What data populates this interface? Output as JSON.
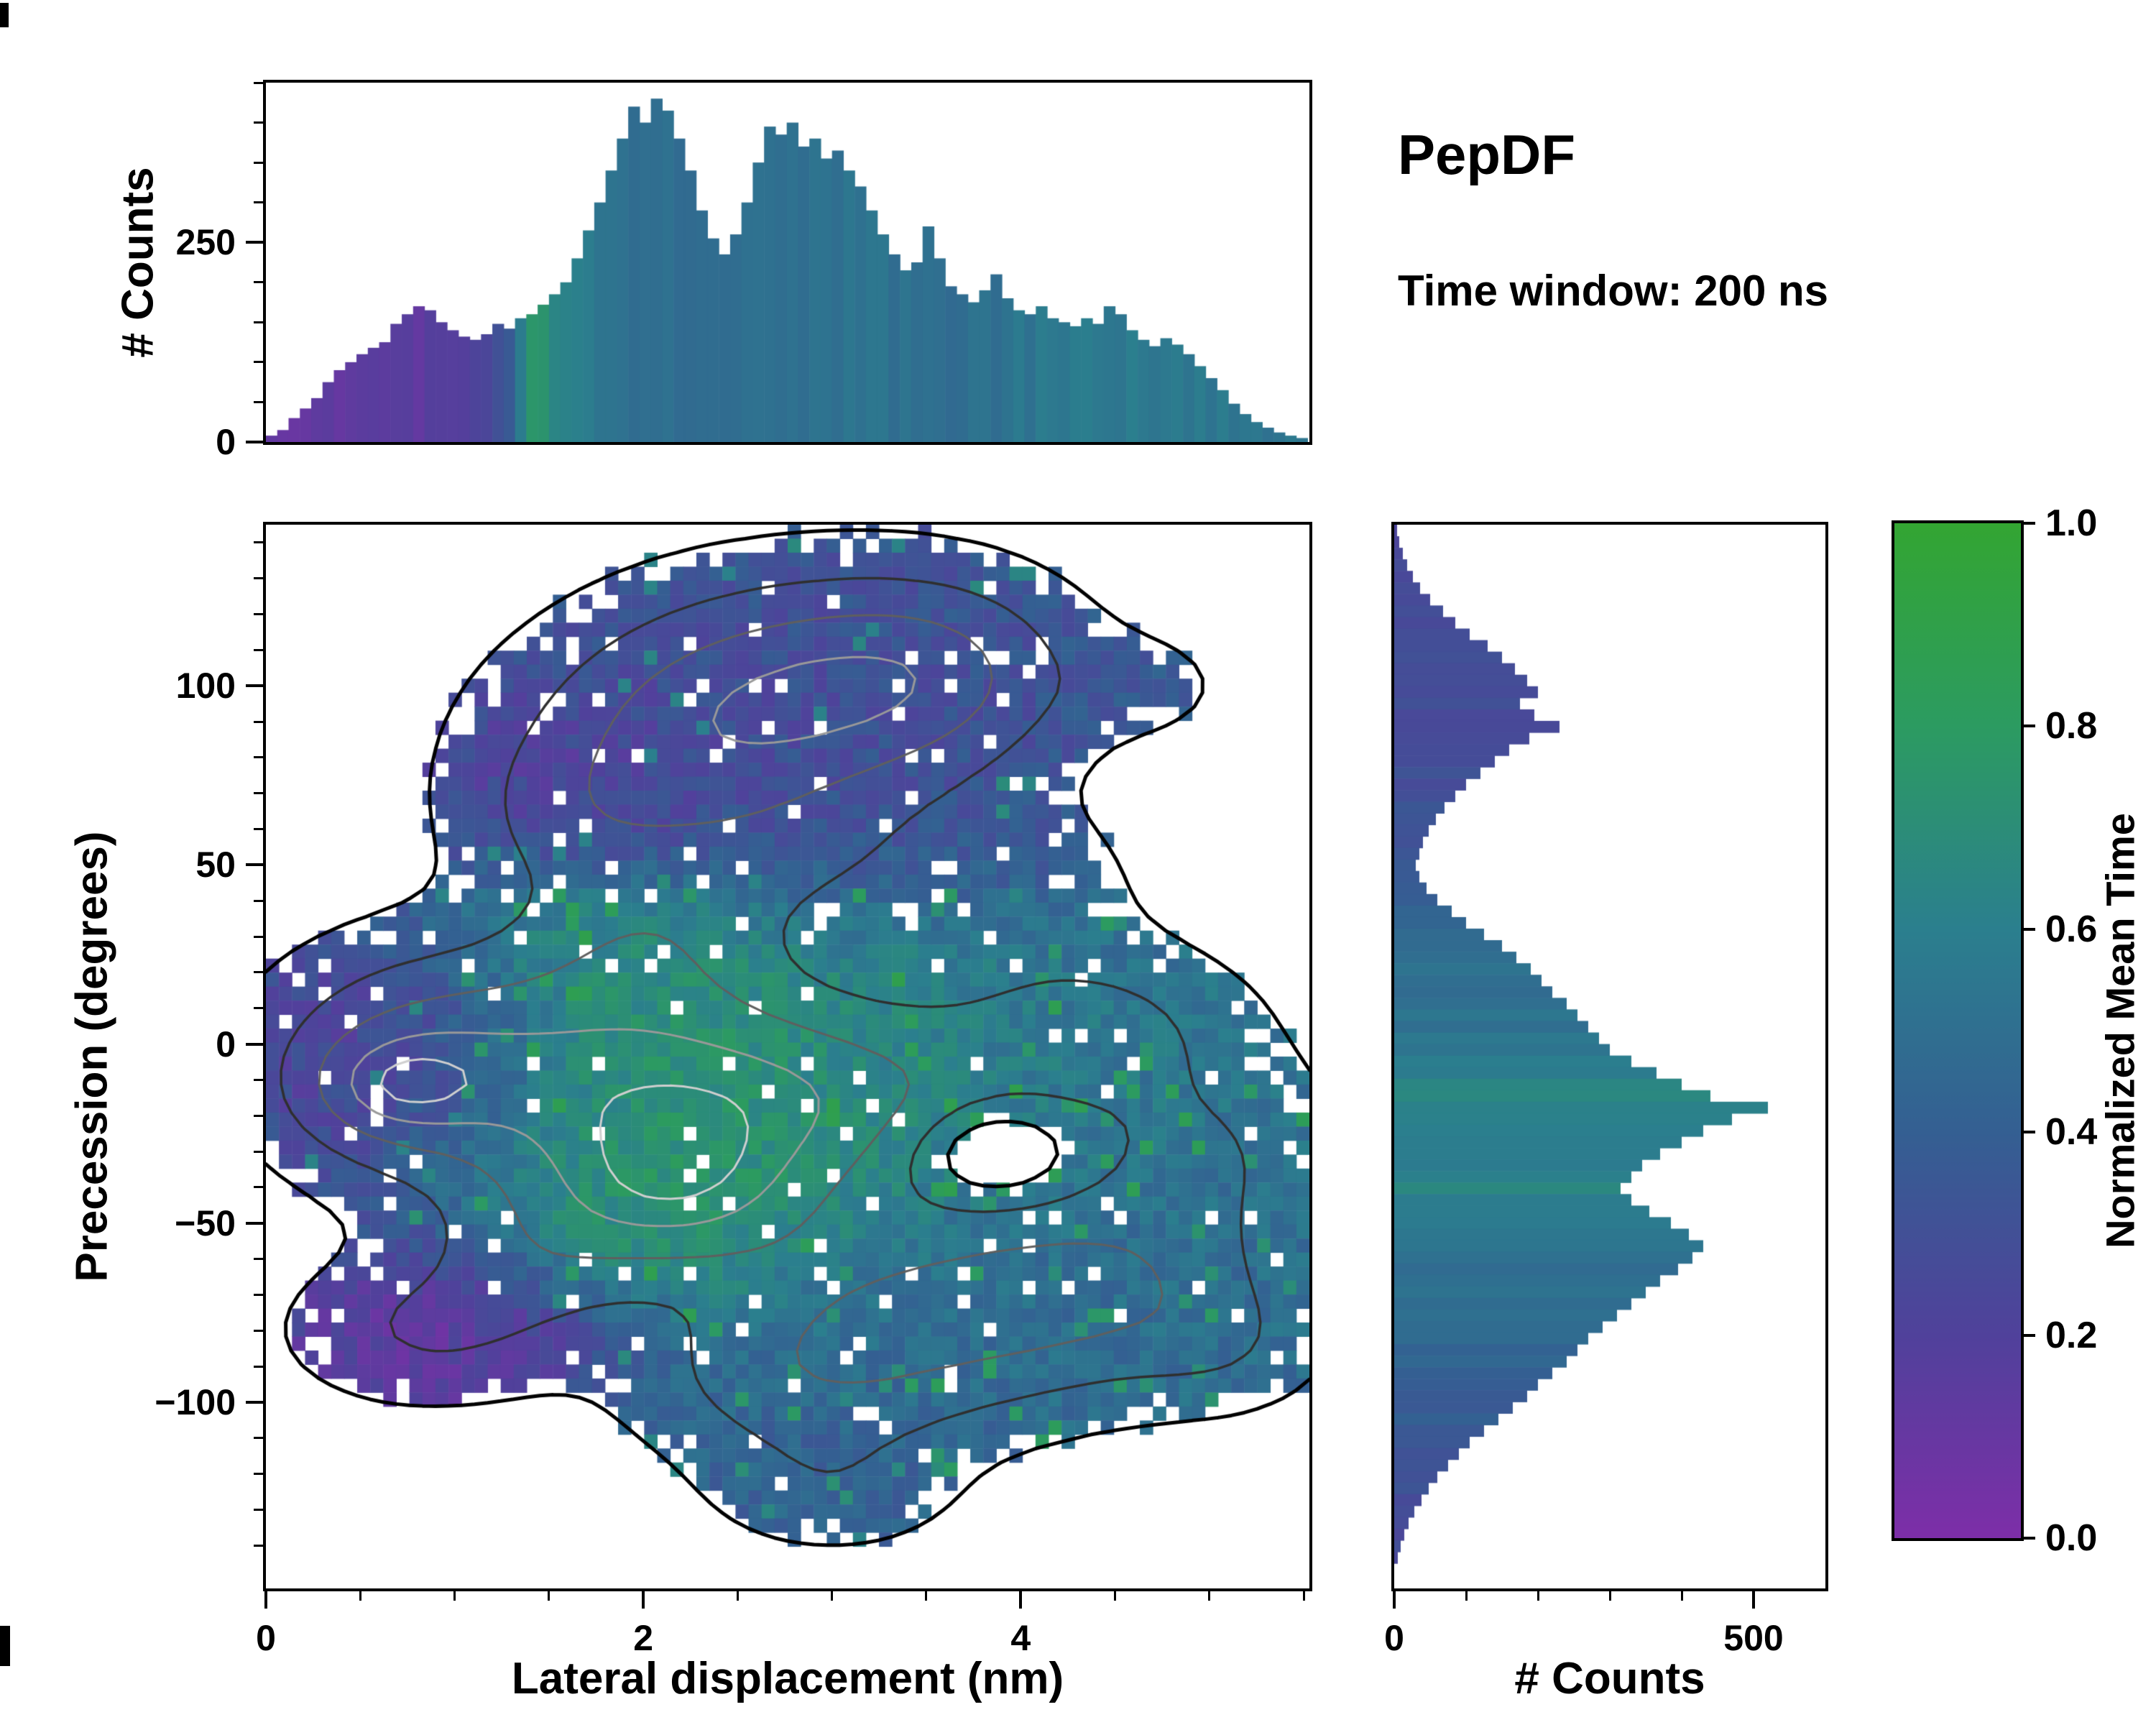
{
  "header": {
    "title": "PepDF",
    "subtitle": "Time window: 200 ns"
  },
  "chart_data": [
    {
      "id": "top_histogram",
      "type": "bar",
      "ylabel": "# Counts",
      "x_range": [
        0,
        5.53
      ],
      "y_range": [
        0,
        450
      ],
      "yticks": [
        0,
        250
      ],
      "yminor_step": 50,
      "bin_start": 0,
      "bin_width": 0.06,
      "values": [
        8,
        15,
        30,
        42,
        55,
        75,
        90,
        100,
        110,
        118,
        125,
        148,
        160,
        170,
        165,
        150,
        140,
        132,
        128,
        135,
        148,
        142,
        155,
        160,
        172,
        185,
        200,
        230,
        265,
        300,
        340,
        380,
        420,
        400,
        430,
        415,
        380,
        340,
        290,
        255,
        235,
        260,
        300,
        350,
        395,
        385,
        400,
        370,
        380,
        355,
        365,
        340,
        320,
        290,
        260,
        235,
        215,
        225,
        270,
        230,
        195,
        185,
        175,
        190,
        210,
        180,
        165,
        160,
        170,
        155,
        150,
        145,
        155,
        148,
        170,
        160,
        140,
        128,
        120,
        130,
        122,
        110,
        95,
        80,
        65,
        48,
        35,
        25,
        18,
        12,
        8,
        5
      ],
      "color_keyframes": [
        [
          0,
          0.1
        ],
        [
          0.55,
          0.13
        ],
        [
          0.95,
          0.16
        ],
        [
          1.18,
          0.22
        ],
        [
          1.3,
          0.4
        ],
        [
          1.42,
          0.78
        ],
        [
          1.56,
          0.62
        ],
        [
          1.8,
          0.52
        ],
        [
          2.1,
          0.48
        ],
        [
          2.5,
          0.52
        ],
        [
          2.9,
          0.5
        ],
        [
          3.3,
          0.52
        ],
        [
          3.7,
          0.5
        ],
        [
          4.1,
          0.55
        ],
        [
          4.6,
          0.57
        ],
        [
          5.1,
          0.55
        ],
        [
          5.53,
          0.52
        ]
      ]
    },
    {
      "id": "main_heatmap",
      "type": "heatmap",
      "xlabel": "Lateral displacement (nm)",
      "ylabel": "Precession (degrees)",
      "value_label": "Normalized Mean Time",
      "x_range": [
        0,
        5.53
      ],
      "y_range": [
        -152,
        145
      ],
      "xticks": [
        0,
        2,
        4
      ],
      "xminor_step": 0.5,
      "yticks": [
        100,
        50,
        0,
        -50,
        -100
      ],
      "yminor_step": 10,
      "grid_nx": 80,
      "grid_ny": 76,
      "density_threshold": 0.14,
      "contour_levels": [
        0.15,
        0.45,
        0.8,
        1.15,
        1.4
      ],
      "contour_colors": [
        "#000000",
        "#2f2f2f",
        "#5f5f5f",
        "#999999",
        "#cfcfcf"
      ],
      "contour_widths": [
        5,
        3.5,
        3,
        3,
        3
      ],
      "density_blobs": [
        {
          "x": 2.9,
          "y": 100,
          "sx": 0.75,
          "sy": 22,
          "w": 0.85
        },
        {
          "x": 2.2,
          "y": 80,
          "sx": 0.7,
          "sy": 22,
          "w": 0.6
        },
        {
          "x": 1.6,
          "y": 62,
          "sx": 0.4,
          "sy": 15,
          "w": 0.3
        },
        {
          "x": 3.6,
          "y": 105,
          "sx": 0.5,
          "sy": 18,
          "w": 0.45
        },
        {
          "x": 2.0,
          "y": 28,
          "sx": 0.5,
          "sy": 16,
          "w": 0.5
        },
        {
          "x": 2.7,
          "y": 50,
          "sx": 0.5,
          "sy": 14,
          "w": 0.25
        },
        {
          "x": 3.9,
          "y": 45,
          "sx": 0.5,
          "sy": 16,
          "w": 0.3
        },
        {
          "x": 4.7,
          "y": 100,
          "sx": 0.3,
          "sy": 10,
          "w": 0.18
        },
        {
          "x": 1.9,
          "y": -10,
          "sx": 0.85,
          "sy": 22,
          "w": 1.0
        },
        {
          "x": 0.8,
          "y": -5,
          "sx": 0.55,
          "sy": 22,
          "w": 0.65
        },
        {
          "x": 2.15,
          "y": -42,
          "sx": 0.55,
          "sy": 16,
          "w": 0.95
        },
        {
          "x": 0.65,
          "y": -12,
          "sx": 0.3,
          "sy": 10,
          "w": 0.5
        },
        {
          "x": 3.1,
          "y": -15,
          "sx": 0.7,
          "sy": 18,
          "w": 0.6
        },
        {
          "x": 4.4,
          "y": 5,
          "sx": 0.55,
          "sy": 16,
          "w": 0.5
        },
        {
          "x": 5.0,
          "y": -30,
          "sx": 0.5,
          "sy": 18,
          "w": 0.4
        },
        {
          "x": 3.6,
          "y": -75,
          "sx": 0.8,
          "sy": 20,
          "w": 0.75
        },
        {
          "x": 4.5,
          "y": -65,
          "sx": 0.6,
          "sy": 18,
          "w": 0.5
        },
        {
          "x": 2.8,
          "y": -95,
          "sx": 0.6,
          "sy": 16,
          "w": 0.45
        },
        {
          "x": 0.85,
          "y": -80,
          "sx": 0.5,
          "sy": 14,
          "w": 0.45
        },
        {
          "x": 1.4,
          "y": -60,
          "sx": 0.4,
          "sy": 14,
          "w": 0.35
        },
        {
          "x": 3.0,
          "y": -125,
          "sx": 0.45,
          "sy": 12,
          "w": 0.3
        },
        {
          "x": 5.1,
          "y": -85,
          "sx": 0.35,
          "sy": 12,
          "w": 0.25
        },
        {
          "x": 3.85,
          "y": -30,
          "sx": 0.28,
          "sy": 9,
          "w": -0.55
        }
      ],
      "meantime_base": {
        "t": 0.5,
        "w": 0.2
      },
      "meantime_blobs": [
        {
          "x": 2.8,
          "y": 95,
          "sx": 1.1,
          "sy": 32,
          "t": 0.27,
          "w": 1.3
        },
        {
          "x": 1.6,
          "y": 75,
          "sx": 0.55,
          "sy": 18,
          "t": 0.14,
          "w": 0.9
        },
        {
          "x": 0.7,
          "y": -5,
          "sx": 0.55,
          "sy": 24,
          "t": 0.1,
          "w": 1.1
        },
        {
          "x": 0.85,
          "y": -82,
          "sx": 0.55,
          "sy": 16,
          "t": 0.07,
          "w": 1.3
        },
        {
          "x": 2.3,
          "y": -15,
          "sx": 0.9,
          "sy": 28,
          "t": 0.8,
          "w": 1.5
        },
        {
          "x": 1.7,
          "y": 28,
          "sx": 0.5,
          "sy": 14,
          "t": 0.72,
          "w": 0.8
        },
        {
          "x": 2.1,
          "y": -48,
          "sx": 0.5,
          "sy": 13,
          "t": 0.75,
          "w": 0.8
        },
        {
          "x": 3.5,
          "y": -5,
          "sx": 0.8,
          "sy": 20,
          "t": 0.55,
          "w": 0.8
        },
        {
          "x": 4.6,
          "y": -15,
          "sx": 0.7,
          "sy": 20,
          "t": 0.55,
          "w": 0.8
        },
        {
          "x": 3.8,
          "y": -75,
          "sx": 1.0,
          "sy": 25,
          "t": 0.48,
          "w": 1.0
        },
        {
          "x": 2.9,
          "y": -120,
          "sx": 0.6,
          "sy": 15,
          "t": 0.4,
          "w": 0.9
        },
        {
          "x": 4.9,
          "y": -60,
          "sx": 0.5,
          "sy": 15,
          "t": 0.5,
          "w": 0.6
        }
      ]
    },
    {
      "id": "right_histogram",
      "type": "bar",
      "orientation": "horizontal",
      "xlabel": "# Counts",
      "x_range": [
        0,
        600
      ],
      "xticks": [
        0,
        500
      ],
      "xminor_step": 100,
      "bin_start": 145,
      "bin_step": -3.2222,
      "values": [
        4,
        7,
        12,
        18,
        26,
        36,
        50,
        68,
        85,
        105,
        130,
        150,
        168,
        185,
        200,
        175,
        195,
        230,
        188,
        160,
        140,
        120,
        100,
        85,
        70,
        58,
        48,
        40,
        35,
        30,
        35,
        45,
        60,
        80,
        100,
        125,
        150,
        170,
        190,
        205,
        220,
        240,
        255,
        270,
        285,
        300,
        330,
        365,
        400,
        440,
        520,
        470,
        430,
        400,
        370,
        345,
        330,
        315,
        330,
        355,
        385,
        410,
        430,
        415,
        395,
        370,
        350,
        330,
        310,
        290,
        270,
        255,
        240,
        220,
        200,
        185,
        165,
        145,
        125,
        105,
        90,
        75,
        60,
        48,
        38,
        28,
        20,
        14,
        9,
        5
      ],
      "color_keyframes": [
        [
          -145,
          0.26
        ],
        [
          -125,
          0.3
        ],
        [
          -105,
          0.38
        ],
        [
          -85,
          0.45
        ],
        [
          -65,
          0.5
        ],
        [
          -52,
          0.56
        ],
        [
          -45,
          0.6
        ],
        [
          -38,
          0.66
        ],
        [
          -30,
          0.56
        ],
        [
          -20,
          0.58
        ],
        [
          -12,
          0.66
        ],
        [
          -5,
          0.56
        ],
        [
          5,
          0.52
        ],
        [
          20,
          0.5
        ],
        [
          35,
          0.45
        ],
        [
          50,
          0.36
        ],
        [
          70,
          0.3
        ],
        [
          95,
          0.28
        ],
        [
          120,
          0.26
        ],
        [
          145,
          0.25
        ]
      ]
    },
    {
      "id": "colorbar",
      "type": "colorbar",
      "label": "Normalized Mean Time",
      "range": [
        0,
        1
      ],
      "ticks": [
        0,
        0.2,
        0.4,
        0.6,
        0.8,
        1
      ],
      "stops": [
        [
          0,
          "#7d2ea8"
        ],
        [
          0.2,
          "#50419b"
        ],
        [
          0.4,
          "#345f92"
        ],
        [
          0.6,
          "#2b7f8e"
        ],
        [
          0.8,
          "#2c9b61"
        ],
        [
          1,
          "#33a532"
        ]
      ]
    }
  ]
}
